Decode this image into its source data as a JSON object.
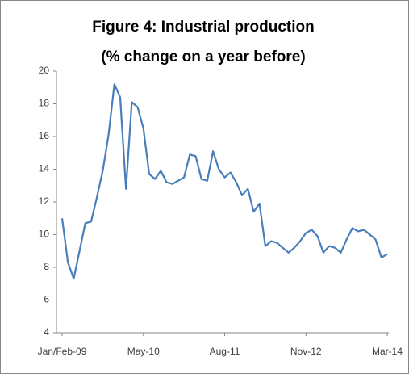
{
  "chart_data": {
    "type": "line",
    "title": "Figure 4: Industrial production",
    "subtitle": "(% change on a year before)",
    "categories": [
      "Jan/Feb-09",
      null,
      null,
      null,
      null,
      null,
      null,
      null,
      null,
      null,
      null,
      null,
      null,
      null,
      "May-10",
      null,
      null,
      null,
      null,
      null,
      null,
      null,
      null,
      null,
      null,
      null,
      null,
      null,
      "Aug-11",
      null,
      null,
      null,
      null,
      null,
      null,
      null,
      null,
      null,
      null,
      null,
      null,
      null,
      "Nov-12",
      null,
      null,
      null,
      null,
      null,
      null,
      null,
      null,
      null,
      null,
      null,
      null,
      null,
      "Mar-14"
    ],
    "series": [
      {
        "name": "Industrial production",
        "color": "#4a7ebb",
        "values": [
          11.0,
          8.3,
          7.3,
          9.0,
          10.7,
          10.8,
          12.3,
          13.9,
          16.1,
          19.2,
          18.4,
          12.8,
          18.1,
          17.8,
          16.5,
          13.7,
          13.4,
          13.9,
          13.2,
          13.1,
          13.3,
          13.5,
          14.9,
          14.8,
          13.4,
          13.3,
          15.1,
          14.0,
          13.5,
          13.8,
          13.2,
          12.4,
          12.8,
          11.4,
          11.9,
          9.3,
          9.6,
          9.5,
          9.2,
          8.9,
          9.2,
          9.6,
          10.1,
          10.3,
          9.9,
          8.9,
          9.3,
          9.2,
          8.9,
          9.7,
          10.4,
          10.2,
          10.3,
          10.0,
          9.7,
          8.6,
          8.8
        ]
      }
    ],
    "ylim": [
      4,
      20
    ],
    "yticks": [
      4,
      6,
      8,
      10,
      12,
      14,
      16,
      18,
      20
    ],
    "grid": false
  }
}
